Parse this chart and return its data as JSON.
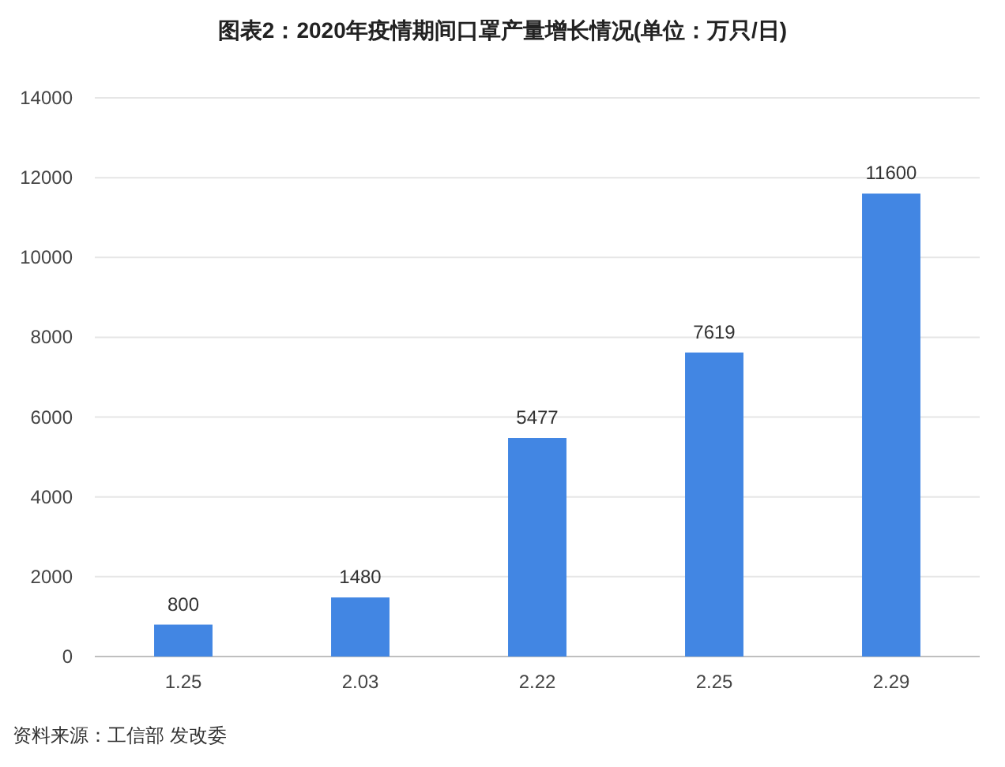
{
  "chart_data": {
    "type": "bar",
    "title": "图表2：2020年疫情期间口罩产量增长情况(单位：万只/日)",
    "categories": [
      "1.25",
      "2.03",
      "2.22",
      "2.25",
      "2.29"
    ],
    "values": [
      800,
      1480,
      5477,
      7619,
      11600
    ],
    "color": "#4286e3",
    "ylim": [
      0,
      14000
    ],
    "yticks": [
      0,
      2000,
      4000,
      6000,
      8000,
      10000,
      12000,
      14000
    ],
    "grid": "y",
    "data_labels": true,
    "annotations": [
      "资料来源：工信部 发改委"
    ]
  }
}
